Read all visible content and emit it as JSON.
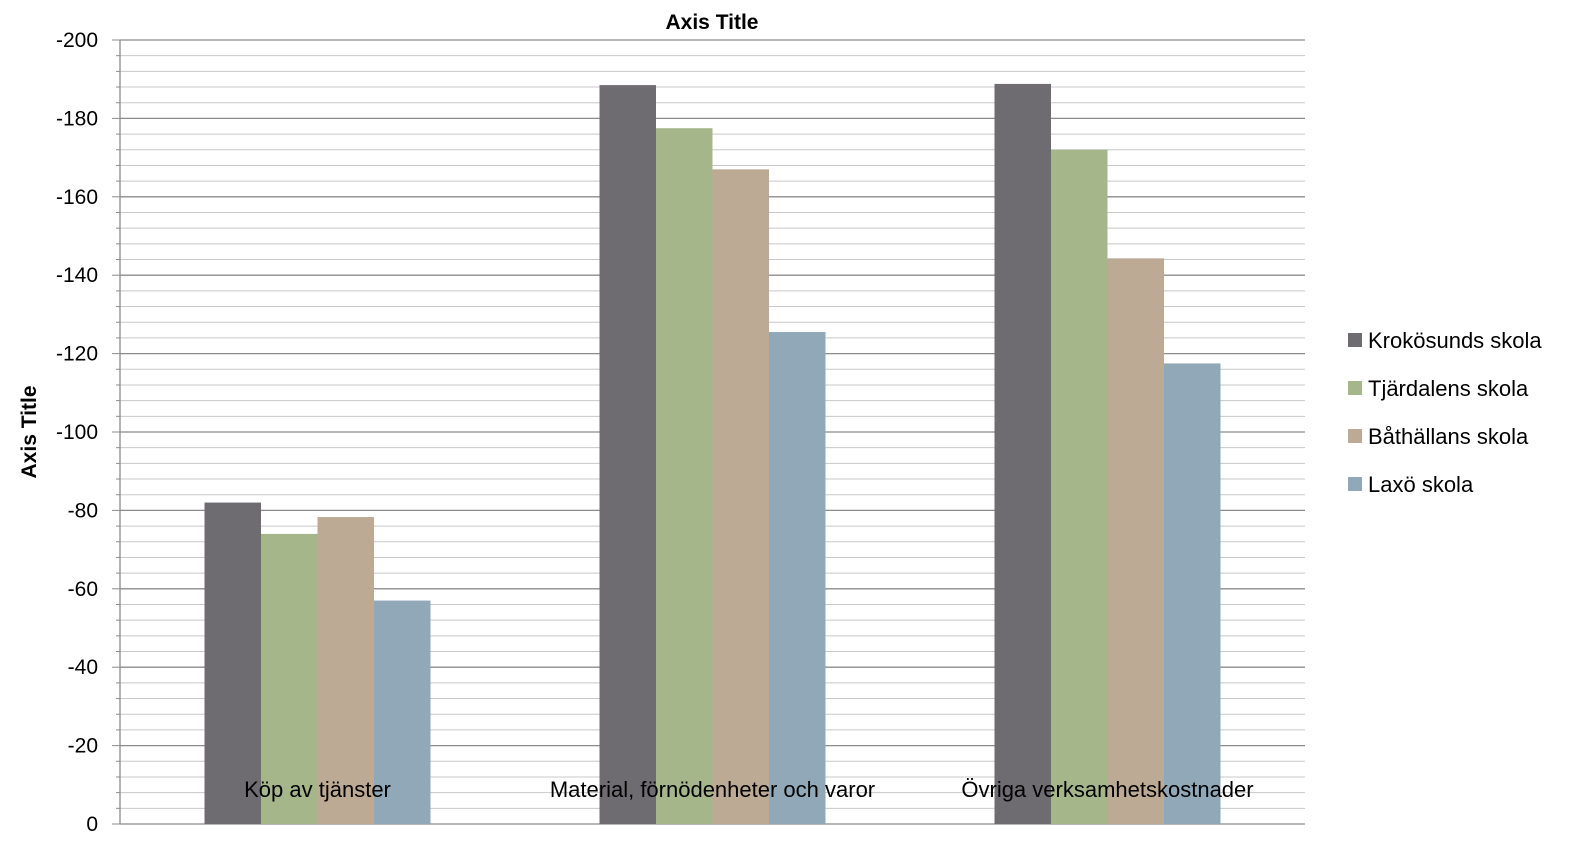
{
  "chart_data": {
    "type": "bar",
    "title": "Axis Title",
    "xlabel": "",
    "ylabel": "Axis Title",
    "categories": [
      "Köp av tjänster",
      "Material, förnödenheter och varor",
      "Övriga verksamhetskostnader"
    ],
    "series": [
      {
        "name": "Krokösunds skola",
        "values": [
          -82,
          -188.5,
          -188.8
        ]
      },
      {
        "name": "Tjärdalens skola",
        "values": [
          -74,
          -177.5,
          -172
        ]
      },
      {
        "name": "Båthällans skola",
        "values": [
          -78.3,
          -167,
          -144.3
        ]
      },
      {
        "name": "Laxö skola",
        "values": [
          -57,
          -125.5,
          -117.5
        ]
      }
    ],
    "colors": [
      "#6f6c71",
      "#a5b68a",
      "#bdaa95",
      "#91a8b9"
    ],
    "ylim": [
      0,
      -200
    ],
    "y_axis_reversed": true,
    "y_ticks": [
      0,
      -20,
      -40,
      -60,
      -80,
      -100,
      -120,
      -140,
      -160,
      -180,
      -200
    ],
    "y_tick_labels": [
      "0",
      "-20",
      "-40",
      "-60",
      "-80",
      "-100",
      "-120",
      "-140",
      "-160",
      "-180",
      "-200"
    ],
    "grid": "major and minor horizontal",
    "legend_position": "right"
  }
}
